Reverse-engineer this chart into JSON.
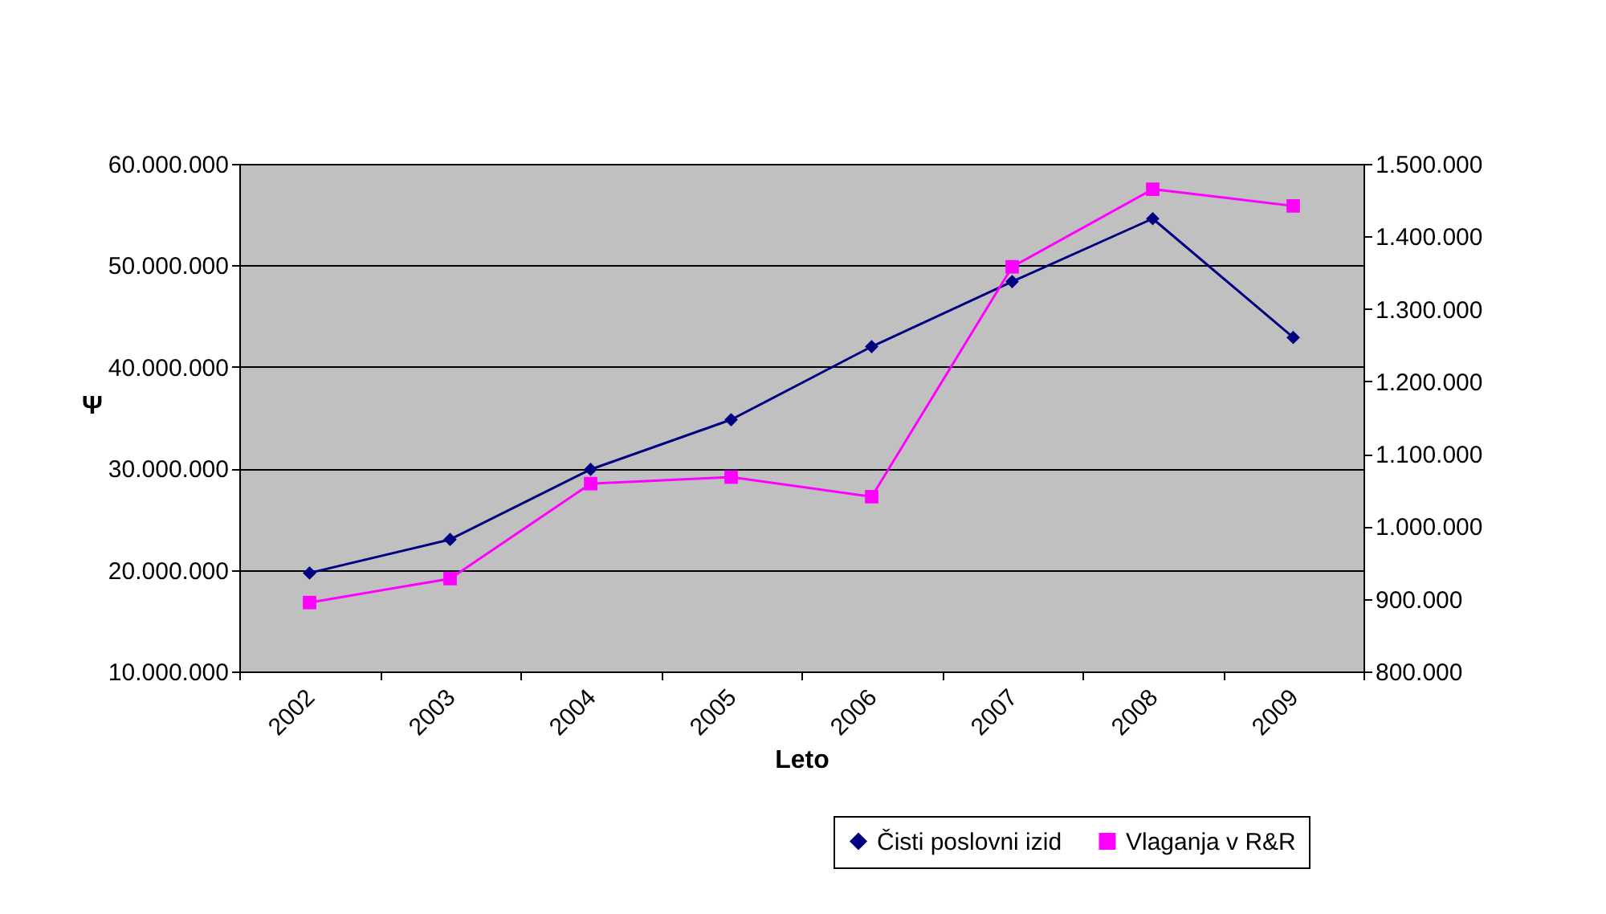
{
  "chart_data": {
    "type": "line",
    "xlabel": "Leto",
    "ylabel": "Ψ",
    "categories": [
      "2002",
      "2003",
      "2004",
      "2005",
      "2006",
      "2007",
      "2008",
      "2009"
    ],
    "series": [
      {
        "name": "Čisti poslovni izid",
        "color": "#000080",
        "marker": "diamond",
        "values": [
          19700000,
          23000000,
          29900000,
          34800000,
          42000000,
          48400000,
          54600000,
          42900000
        ]
      },
      {
        "name": "Vlaganja v R&R",
        "color": "#ff00ff",
        "marker": "square",
        "axis": "y2",
        "values": [
          895000,
          928000,
          1059000,
          1068000,
          1041000,
          1358000,
          1465000,
          1442000
        ]
      }
    ],
    "ylim": [
      10000000,
      60000000
    ],
    "yticks": [
      {
        "value": 10000000,
        "label": "10.000.000"
      },
      {
        "value": 20000000,
        "label": "20.000.000"
      },
      {
        "value": 30000000,
        "label": "30.000.000"
      },
      {
        "value": 40000000,
        "label": "40.000.000"
      },
      {
        "value": 50000000,
        "label": "50.000.000"
      },
      {
        "value": 60000000,
        "label": "60.000.000"
      }
    ],
    "y2lim": [
      800000,
      1500000
    ],
    "y2ticks": [
      {
        "value": 800000,
        "label": "800.000"
      },
      {
        "value": 900000,
        "label": "900.000"
      },
      {
        "value": 1000000,
        "label": "1.000.000"
      },
      {
        "value": 1100000,
        "label": "1.100.000"
      },
      {
        "value": 1200000,
        "label": "1.200.000"
      },
      {
        "value": 1300000,
        "label": "1.300.000"
      },
      {
        "value": 1400000,
        "label": "1.400.000"
      },
      {
        "value": 1500000,
        "label": "1.500.000"
      }
    ],
    "grid": "y",
    "legend": "bottom right",
    "line_style": "solid"
  }
}
